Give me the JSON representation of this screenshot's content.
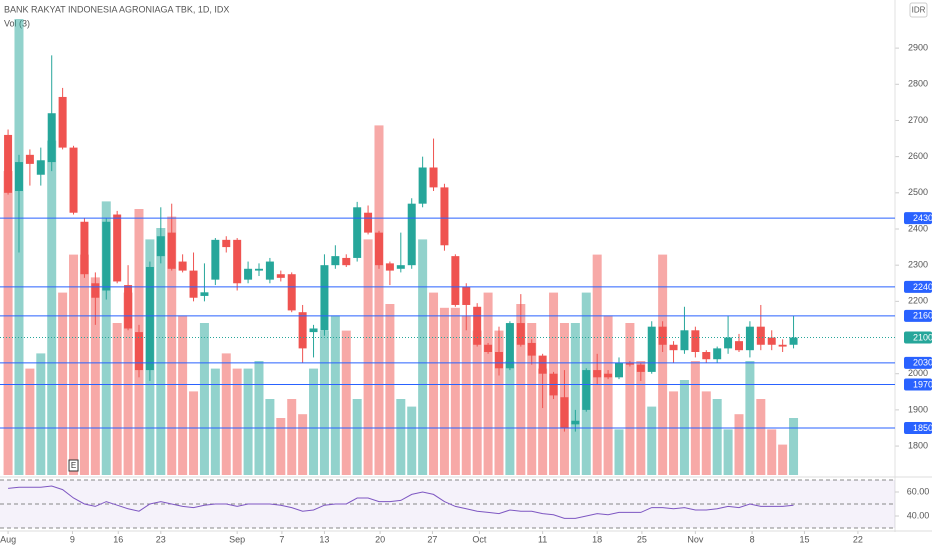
{
  "chart_data": {
    "type": "candlestick",
    "title": "BANK RAKYAT INDONESIA AGRONIAGA TBK, 1D, IDX",
    "indicator_label": "Vol (3)",
    "currency": "IDR",
    "up_color": "#26a69a",
    "down_color": "#ef5350",
    "level_color": "#2962ff",
    "xlim": [
      -0.74,
      81.3
    ],
    "xticks": [
      {
        "value": 0,
        "label": "Aug"
      },
      {
        "value": 5.9,
        "label": "9"
      },
      {
        "value": 10.1,
        "label": "16"
      },
      {
        "value": 14.0,
        "label": "23"
      },
      {
        "value": 21.0,
        "label": "Sep"
      },
      {
        "value": 25.1,
        "label": "7"
      },
      {
        "value": 29.0,
        "label": "13"
      },
      {
        "value": 34.1,
        "label": "20"
      },
      {
        "value": 38.9,
        "label": "27"
      },
      {
        "value": 43.2,
        "label": "Oct"
      },
      {
        "value": 49.0,
        "label": "11"
      },
      {
        "value": 54.0,
        "label": "18"
      },
      {
        "value": 58.1,
        "label": "25"
      },
      {
        "value": 63.0,
        "label": "Nov"
      },
      {
        "value": 68.2,
        "label": "8"
      },
      {
        "value": 73.0,
        "label": "15"
      },
      {
        "value": 77.9,
        "label": "22"
      }
    ],
    "ylim": [
      1720,
      3033
    ],
    "yticks": [
      2900,
      2800,
      2700,
      2600,
      2500,
      2400,
      2300,
      2200,
      2000,
      1900,
      1800
    ],
    "levels": [
      2430,
      2240,
      2160,
      2030,
      1970,
      1850
    ],
    "last_price": 2100,
    "event_marker": {
      "label": "E",
      "x": 6
    },
    "open": [
      2660,
      2505,
      2605,
      2550,
      2585,
      2765,
      2625,
      2420,
      2250,
      2230,
      2440,
      2245,
      2115,
      2010,
      2325,
      2390,
      2310,
      2285,
      2215,
      2260,
      2370,
      2370,
      2260,
      2285,
      2260,
      2275,
      2275,
      2170,
      2115,
      2120,
      2300,
      2320,
      2320,
      2445,
      2390,
      2305,
      2290,
      2300,
      2470,
      2570,
      2515,
      2325,
      2240,
      2185,
      2080,
      2060,
      2015,
      2140,
      2085,
      2050,
      2000,
      1935,
      1860,
      1900,
      2010,
      2000,
      1990,
      2030,
      2025,
      2005,
      2130,
      2080,
      2065,
      2120,
      2060,
      2040,
      2070,
      2090,
      2065,
      2130,
      2100,
      2080,
      2080
    ],
    "high": [
      2675,
      2605,
      2620,
      2625,
      2880,
      2790,
      2630,
      2430,
      2280,
      2430,
      2450,
      2300,
      2135,
      2310,
      2460,
      2470,
      2330,
      2335,
      2305,
      2375,
      2380,
      2375,
      2310,
      2305,
      2320,
      2285,
      2280,
      2190,
      2135,
      2330,
      2355,
      2330,
      2475,
      2465,
      2395,
      2310,
      2390,
      2485,
      2600,
      2650,
      2525,
      2330,
      2250,
      2195,
      2085,
      2130,
      2145,
      2220,
      2095,
      2055,
      2005,
      2010,
      1900,
      2015,
      2055,
      2010,
      2045,
      2035,
      2030,
      2145,
      2145,
      2090,
      2185,
      2130,
      2065,
      2075,
      2160,
      2110,
      2145,
      2190,
      2120,
      2095,
      2160
    ],
    "low": [
      2495,
      2335,
      2520,
      2520,
      2560,
      2620,
      2440,
      2265,
      2135,
      2205,
      2250,
      2120,
      1990,
      1980,
      2305,
      2285,
      2280,
      2200,
      2200,
      2245,
      2335,
      2230,
      2250,
      2270,
      2250,
      2255,
      2170,
      2030,
      2045,
      2105,
      2290,
      2295,
      2310,
      2385,
      2290,
      2245,
      2280,
      2290,
      2460,
      2505,
      2340,
      2185,
      2120,
      2075,
      2055,
      1995,
      2010,
      2075,
      2025,
      1905,
      1930,
      1840,
      1840,
      1895,
      1970,
      1985,
      1985,
      2020,
      1980,
      2000,
      2060,
      2030,
      2055,
      2045,
      2030,
      2030,
      2055,
      2060,
      2045,
      2065,
      2065,
      2060,
      2070
    ],
    "close": [
      2500,
      2585,
      2580,
      2590,
      2720,
      2625,
      2445,
      2275,
      2210,
      2420,
      2255,
      2125,
      2010,
      2295,
      2380,
      2290,
      2285,
      2210,
      2225,
      2370,
      2350,
      2250,
      2290,
      2290,
      2310,
      2265,
      2175,
      2070,
      2125,
      2300,
      2325,
      2300,
      2460,
      2390,
      2300,
      2285,
      2300,
      2470,
      2570,
      2515,
      2355,
      2190,
      2190,
      2080,
      2060,
      2015,
      2140,
      2080,
      2050,
      2000,
      1940,
      1850,
      1870,
      2010,
      1990,
      1990,
      2030,
      2025,
      2005,
      2130,
      2080,
      2065,
      2120,
      2060,
      2040,
      2070,
      2100,
      2065,
      2130,
      2080,
      2080,
      2075,
      2100
    ],
    "volume": [
      80,
      120,
      28,
      32,
      88,
      48,
      58,
      58,
      52,
      72,
      40,
      48,
      70,
      62,
      65,
      68,
      42,
      22,
      40,
      28,
      32,
      28,
      28,
      30,
      20,
      15,
      20,
      16,
      28,
      38,
      42,
      38,
      20,
      62,
      92,
      45,
      20,
      18,
      62,
      48,
      44,
      44,
      42,
      38,
      48,
      38,
      30,
      45,
      40,
      28,
      48,
      40,
      40,
      48,
      58,
      42,
      12,
      40,
      30,
      18,
      58,
      22,
      25,
      30,
      22,
      20,
      12,
      16,
      30,
      20,
      12,
      8,
      15
    ],
    "volume_lim": [
      0,
      125
    ],
    "rsi": {
      "values": [
        63,
        64,
        64,
        64,
        65,
        62,
        55,
        50,
        48,
        52,
        49,
        46,
        44,
        50,
        52,
        50,
        48,
        47,
        49,
        50,
        50,
        48,
        50,
        50,
        50,
        49,
        47,
        44,
        45,
        49,
        50,
        50,
        55,
        55,
        52,
        52,
        53,
        58,
        60,
        58,
        52,
        48,
        46,
        44,
        43,
        42,
        45,
        44,
        44,
        42,
        41,
        38,
        38,
        40,
        42,
        41,
        43,
        43,
        43,
        47,
        47,
        46,
        47,
        45,
        45,
        46,
        48,
        47,
        50,
        48,
        48,
        48,
        49
      ],
      "color": "#7e57c2",
      "ylim": [
        30,
        70
      ],
      "levels": [
        70,
        50,
        30
      ],
      "yticks": [
        {
          "value": 60,
          "label": "60.00"
        },
        {
          "value": 40,
          "label": "40.00"
        }
      ]
    }
  }
}
